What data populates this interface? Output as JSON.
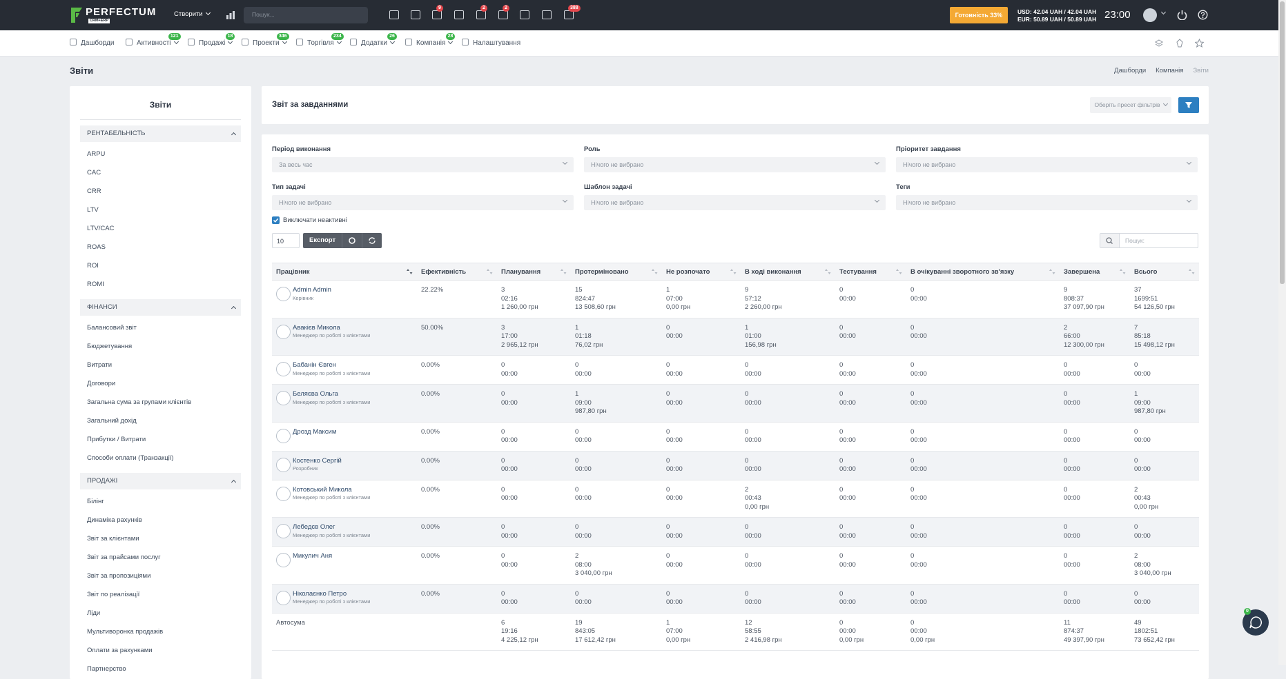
{
  "topbar": {
    "logo": "PERFECTUM",
    "logo_sub": "CRM+ERP",
    "create": "Створити",
    "search_placeholder": "Пошук...",
    "badges": [
      "9",
      "2",
      "2",
      "388"
    ],
    "readiness": "Готовність 33%",
    "usd": "USD: 42.04 UAH / 42.04 UAH",
    "eur": "EUR: 50.89 UAH / 50.89 UAH",
    "time": "23:00"
  },
  "nav": [
    {
      "label": "Дашборди"
    },
    {
      "label": "Активності",
      "badge": "121"
    },
    {
      "label": "Продажі",
      "badge": "18"
    },
    {
      "label": "Проекти",
      "badge": "346"
    },
    {
      "label": "Торгівля",
      "badge": "234"
    },
    {
      "label": "Додатки",
      "badge": "26"
    },
    {
      "label": "Компанія",
      "badge": "28"
    },
    {
      "label": "Налаштування"
    }
  ],
  "page_title": "Звіти",
  "breadcrumb": [
    "Дашборди",
    "Компанія",
    "Звіти"
  ],
  "sidebar": {
    "title": "Звіти",
    "sections": [
      {
        "title": "РЕНТАБЕЛЬНІСТЬ",
        "items": [
          "ARPU",
          "CAC",
          "CRR",
          "LTV",
          "LTV/CAC",
          "ROAS",
          "ROI",
          "ROMI"
        ]
      },
      {
        "title": "ФІНАНСИ",
        "items": [
          "Балансовий звіт",
          "Бюджетування",
          "Витрати",
          "Договори",
          "Загальна сума за групами клієнтів",
          "Загальний дохід",
          "Прибутки / Витрати",
          "Способи оплати (Транзакції)"
        ]
      },
      {
        "title": "ПРОДАЖІ",
        "items": [
          "Білінг",
          "Динаміка рахунків",
          "Звіт за клієнтами",
          "Звіт за прайсами послуг",
          "Звіт за пропозиціями",
          "Звіт по реалізації",
          "Ліди",
          "Мультиворонка продажів",
          "Оплати за рахунками",
          "Партнерство"
        ]
      }
    ]
  },
  "report": {
    "title": "Звіт за завданнями",
    "preset": "Оберіть пресет фільтрів"
  },
  "filters": [
    {
      "label": "Період виконання",
      "value": "За весь час"
    },
    {
      "label": "Роль",
      "value": "Нічого не вибрано"
    },
    {
      "label": "Пріоритет завдання",
      "value": "Нічого не вибрано"
    },
    {
      "label": "Тип задачі",
      "value": "Нічого не вибрано"
    },
    {
      "label": "Шаблон задачі",
      "value": "Нічого не вибрано"
    },
    {
      "label": "Теги",
      "value": "Нічого не вибрано"
    }
  ],
  "exclude_inactive": "Виключати неактивні",
  "page_size": "10",
  "export": "Експорт",
  "table_search_placeholder": "Пошук:",
  "table": {
    "columns": [
      "Працівник",
      "Ефективність",
      "Планування",
      "Протерміновано",
      "Не розпочато",
      "В ході виконання",
      "Тестування",
      "В очікуванні зворотного зв'язку",
      "Завершена",
      "Всього"
    ],
    "rows": [
      {
        "name": "Admin Admin",
        "role": "Керівник",
        "efficiency": "22.22%",
        "cells": [
          [
            "3",
            "02:16",
            "1 260,00 грн"
          ],
          [
            "15",
            "824:47",
            "13 508,60 грн"
          ],
          [
            "1",
            "07:00",
            "0,00 грн"
          ],
          [
            "9",
            "57:12",
            "2 260,00 грн"
          ],
          [
            "0",
            "00:00"
          ],
          [
            "0",
            "00:00"
          ],
          [
            "9",
            "808:37",
            "37 097,90 грн"
          ],
          [
            "37",
            "1699:51",
            "54 126,50 грн"
          ]
        ]
      },
      {
        "name": "Авакієв Микола",
        "role": "Менеджер по роботі з клієнтами",
        "efficiency": "50.00%",
        "cells": [
          [
            "3",
            "17:00",
            "2 965,12 грн"
          ],
          [
            "1",
            "01:18",
            "76,02 грн"
          ],
          [
            "0",
            "00:00"
          ],
          [
            "1",
            "01:00",
            "156,98 грн"
          ],
          [
            "0",
            "00:00"
          ],
          [
            "0",
            "00:00"
          ],
          [
            "2",
            "66:00",
            "12 300,00 грн"
          ],
          [
            "7",
            "85:18",
            "15 498,12 грн"
          ]
        ]
      },
      {
        "name": "Бабанін Євген",
        "role": "Менеджер по роботі з клієнтами",
        "efficiency": "0.00%",
        "cells": [
          [
            "0",
            "00:00"
          ],
          [
            "0",
            "00:00"
          ],
          [
            "0",
            "00:00"
          ],
          [
            "0",
            "00:00"
          ],
          [
            "0",
            "00:00"
          ],
          [
            "0",
            "00:00"
          ],
          [
            "0",
            "00:00"
          ],
          [
            "0",
            "00:00"
          ]
        ]
      },
      {
        "name": "Беляєва Ольга",
        "role": "Менеджер по роботі з клієнтами",
        "efficiency": "0.00%",
        "cells": [
          [
            "0",
            "00:00"
          ],
          [
            "1",
            "09:00",
            "987,80 грн"
          ],
          [
            "0",
            "00:00"
          ],
          [
            "0",
            "00:00"
          ],
          [
            "0",
            "00:00"
          ],
          [
            "0",
            "00:00"
          ],
          [
            "0",
            "00:00"
          ],
          [
            "1",
            "09:00",
            "987,80 грн"
          ]
        ]
      },
      {
        "name": "Дрозд Максим",
        "efficiency": "0.00%",
        "cells": [
          [
            "0",
            "00:00"
          ],
          [
            "0",
            "00:00"
          ],
          [
            "0",
            "00:00"
          ],
          [
            "0",
            "00:00"
          ],
          [
            "0",
            "00:00"
          ],
          [
            "0",
            "00:00"
          ],
          [
            "0",
            "00:00"
          ],
          [
            "0",
            "00:00"
          ]
        ]
      },
      {
        "name": "Костенко Сергій",
        "role": "Розробник",
        "efficiency": "0.00%",
        "cells": [
          [
            "0",
            "00:00"
          ],
          [
            "0",
            "00:00"
          ],
          [
            "0",
            "00:00"
          ],
          [
            "0",
            "00:00"
          ],
          [
            "0",
            "00:00"
          ],
          [
            "0",
            "00:00"
          ],
          [
            "0",
            "00:00"
          ],
          [
            "0",
            "00:00"
          ]
        ]
      },
      {
        "name": "Котовський Микола",
        "role": "Менеджер по роботі з клієнтами",
        "efficiency": "0.00%",
        "cells": [
          [
            "0",
            "00:00"
          ],
          [
            "0",
            "00:00"
          ],
          [
            "0",
            "00:00"
          ],
          [
            "2",
            "00:43",
            "0,00 грн"
          ],
          [
            "0",
            "00:00"
          ],
          [
            "0",
            "00:00"
          ],
          [
            "0",
            "00:00"
          ],
          [
            "2",
            "00:43",
            "0,00 грн"
          ]
        ]
      },
      {
        "name": "Лебедєв Олег",
        "role": "Менеджер по роботі з клієнтами",
        "efficiency": "0.00%",
        "cells": [
          [
            "0",
            "00:00"
          ],
          [
            "0",
            "00:00"
          ],
          [
            "0",
            "00:00"
          ],
          [
            "0",
            "00:00"
          ],
          [
            "0",
            "00:00"
          ],
          [
            "0",
            "00:00"
          ],
          [
            "0",
            "00:00"
          ],
          [
            "0",
            "00:00"
          ]
        ]
      },
      {
        "name": "Микулич Аня",
        "efficiency": "0.00%",
        "cells": [
          [
            "0",
            "00:00"
          ],
          [
            "2",
            "08:00",
            "3 040,00 грн"
          ],
          [
            "0",
            "00:00"
          ],
          [
            "0",
            "00:00"
          ],
          [
            "0",
            "00:00"
          ],
          [
            "0",
            "00:00"
          ],
          [
            "0",
            "00:00"
          ],
          [
            "2",
            "08:00",
            "3 040,00 грн"
          ]
        ]
      },
      {
        "name": "Ніколаєнко Петро",
        "role": "Менеджер по роботі з клієнтами",
        "efficiency": "0.00%",
        "cells": [
          [
            "0",
            "00:00"
          ],
          [
            "0",
            "00:00"
          ],
          [
            "0",
            "00:00"
          ],
          [
            "0",
            "00:00"
          ],
          [
            "0",
            "00:00"
          ],
          [
            "0",
            "00:00"
          ],
          [
            "0",
            "00:00"
          ],
          [
            "0",
            "00:00"
          ]
        ]
      }
    ],
    "footer": {
      "label": "Автосума",
      "cells": [
        [
          "6",
          "19:16",
          "4 225,12 грн"
        ],
        [
          "19",
          "843:05",
          "17 612,42 грн"
        ],
        [
          "1",
          "07:00",
          "0,00 грн"
        ],
        [
          "12",
          "58:55",
          "2 416,98 грн"
        ],
        [
          "0",
          "00:00",
          "0,00 грн"
        ],
        [
          "0",
          "00:00",
          "0,00 грн"
        ],
        [
          "11",
          "874:37",
          "49 397,90 грн"
        ],
        [
          "49",
          "1802:51",
          "73 652,42 грн"
        ]
      ]
    }
  },
  "chat_badge": "0"
}
